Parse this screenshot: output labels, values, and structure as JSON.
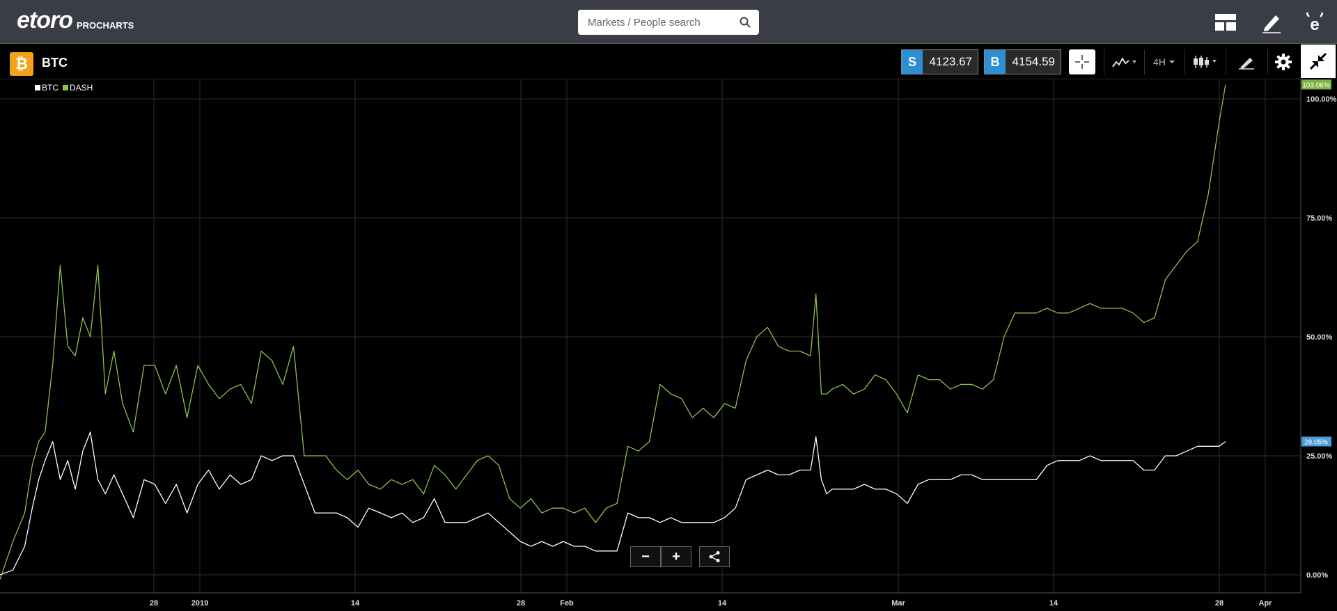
{
  "brand": {
    "word": "etoro",
    "sub": "PROCHARTS"
  },
  "search": {
    "placeholder": "Markets / People search"
  },
  "header_icons": [
    "layout-icon",
    "pencil-icon",
    "profile-icon"
  ],
  "instrument": {
    "symbol": "BTC",
    "badge": "₿"
  },
  "prices": {
    "sell_label": "S",
    "sell": "4123.67",
    "buy_label": "B",
    "buy": "4154.59"
  },
  "toolbar": {
    "timeframe": "4H"
  },
  "colors": {
    "btc": "#ffffff",
    "dash": "#8bc34a",
    "sell_bg": "#2c8fd4",
    "badge": "#f2a31c"
  },
  "legend": [
    {
      "name": "BTC",
      "color": "#ffffff"
    },
    {
      "name": "DASH",
      "color": "#8bc34a"
    }
  ],
  "zoom": {
    "minus": "−",
    "plus": "+"
  },
  "chart_data": {
    "type": "line",
    "x_ticks": [
      "28",
      "2019",
      "14",
      "28",
      "Feb",
      "14",
      "Mar",
      "14",
      "28",
      "Apr"
    ],
    "y_ticks": [
      "100.00%",
      "75.00%",
      "50.00%",
      "25.00%",
      "0.00%"
    ],
    "ylim": [
      -4,
      105
    ],
    "last_value_labels": {
      "BTC": "28.05%",
      "DASH": "103.06%"
    },
    "series": [
      {
        "name": "BTC",
        "color": "#ffffff",
        "points": [
          [
            0,
            0
          ],
          [
            1.2,
            1
          ],
          [
            2.3,
            6
          ],
          [
            3.0,
            14
          ],
          [
            3.6,
            20
          ],
          [
            4.2,
            24
          ],
          [
            4.9,
            28
          ],
          [
            5.6,
            20
          ],
          [
            6.3,
            24
          ],
          [
            7.0,
            18
          ],
          [
            7.7,
            26
          ],
          [
            8.4,
            30
          ],
          [
            9.1,
            20
          ],
          [
            9.8,
            17
          ],
          [
            10.6,
            21
          ],
          [
            11.4,
            17
          ],
          [
            12.4,
            12
          ],
          [
            13.4,
            20
          ],
          [
            14.4,
            19
          ],
          [
            15.4,
            15
          ],
          [
            16.4,
            19
          ],
          [
            17.4,
            13
          ],
          [
            18.4,
            19
          ],
          [
            19.4,
            22
          ],
          [
            20.4,
            18
          ],
          [
            21.4,
            21
          ],
          [
            22.4,
            19
          ],
          [
            23.4,
            20
          ],
          [
            24.3,
            25
          ],
          [
            25.3,
            24
          ],
          [
            26.3,
            25
          ],
          [
            27.3,
            25
          ],
          [
            28.3,
            19
          ],
          [
            29.3,
            13
          ],
          [
            30.3,
            13
          ],
          [
            31.3,
            13
          ],
          [
            32.3,
            12
          ],
          [
            33.3,
            10
          ],
          [
            34.3,
            14
          ],
          [
            35.4,
            13
          ],
          [
            36.4,
            12
          ],
          [
            37.4,
            13
          ],
          [
            38.4,
            11
          ],
          [
            39.4,
            12
          ],
          [
            40.4,
            16
          ],
          [
            41.4,
            11
          ],
          [
            42.4,
            11
          ],
          [
            43.4,
            11
          ],
          [
            44.4,
            12
          ],
          [
            45.4,
            13
          ],
          [
            46.4,
            11
          ],
          [
            47.4,
            9
          ],
          [
            48.4,
            7
          ],
          [
            49.4,
            6
          ],
          [
            50.4,
            7
          ],
          [
            51.4,
            6
          ],
          [
            52.4,
            7
          ],
          [
            53.4,
            6
          ],
          [
            54.4,
            6
          ],
          [
            55.4,
            5
          ],
          [
            56.4,
            5
          ],
          [
            57.4,
            5
          ],
          [
            58.4,
            13
          ],
          [
            59.4,
            12
          ],
          [
            60.4,
            12
          ],
          [
            61.4,
            11
          ],
          [
            62.4,
            12
          ],
          [
            63.4,
            11
          ],
          [
            64.4,
            11
          ],
          [
            65.4,
            11
          ],
          [
            66.4,
            11
          ],
          [
            67.4,
            12
          ],
          [
            68.4,
            14
          ],
          [
            69.4,
            20
          ],
          [
            70.4,
            21
          ],
          [
            71.4,
            22
          ],
          [
            72.4,
            21
          ],
          [
            73.4,
            21
          ],
          [
            74.4,
            22
          ],
          [
            75.4,
            22
          ],
          [
            75.9,
            29
          ],
          [
            76.4,
            20
          ],
          [
            76.9,
            17
          ],
          [
            77.4,
            18
          ],
          [
            78.4,
            18
          ],
          [
            79.4,
            18
          ],
          [
            80.4,
            19
          ],
          [
            81.4,
            18
          ],
          [
            82.4,
            18
          ],
          [
            83.4,
            17
          ],
          [
            84.4,
            15
          ],
          [
            85.4,
            19
          ],
          [
            86.4,
            20
          ],
          [
            87.4,
            20
          ],
          [
            88.4,
            20
          ],
          [
            89.4,
            21
          ],
          [
            90.4,
            21
          ],
          [
            91.4,
            20
          ],
          [
            92.4,
            20
          ],
          [
            93.4,
            20
          ],
          [
            94.4,
            20
          ],
          [
            95.4,
            20
          ],
          [
            96.4,
            20
          ],
          [
            97.4,
            23
          ],
          [
            98.4,
            24
          ],
          [
            99.4,
            24
          ],
          [
            100.4,
            24
          ],
          [
            101.4,
            25
          ],
          [
            102.4,
            24
          ],
          [
            103.4,
            24
          ],
          [
            104.4,
            24
          ],
          [
            105.4,
            24
          ],
          [
            106.4,
            22
          ],
          [
            107.4,
            22
          ],
          [
            108.4,
            25
          ],
          [
            109.4,
            25
          ],
          [
            110.4,
            26
          ],
          [
            111.4,
            27
          ],
          [
            112.4,
            27
          ],
          [
            113.4,
            27
          ],
          [
            114.0,
            28
          ]
        ]
      },
      {
        "name": "DASH",
        "color": "#8bc34a",
        "points": [
          [
            0,
            -1
          ],
          [
            1.2,
            7
          ],
          [
            2.3,
            13
          ],
          [
            3.0,
            23
          ],
          [
            3.6,
            28
          ],
          [
            4.2,
            30
          ],
          [
            4.9,
            44
          ],
          [
            5.6,
            65
          ],
          [
            6.3,
            48
          ],
          [
            7.0,
            46
          ],
          [
            7.7,
            54
          ],
          [
            8.4,
            50
          ],
          [
            9.1,
            65
          ],
          [
            9.8,
            38
          ],
          [
            10.6,
            47
          ],
          [
            11.4,
            36
          ],
          [
            12.4,
            30
          ],
          [
            13.4,
            44
          ],
          [
            14.4,
            44
          ],
          [
            15.4,
            38
          ],
          [
            16.4,
            44
          ],
          [
            17.4,
            33
          ],
          [
            18.4,
            44
          ],
          [
            19.4,
            40
          ],
          [
            20.4,
            37
          ],
          [
            21.4,
            39
          ],
          [
            22.4,
            40
          ],
          [
            23.4,
            36
          ],
          [
            24.3,
            47
          ],
          [
            25.3,
            45
          ],
          [
            26.3,
            40
          ],
          [
            27.3,
            48
          ],
          [
            28.3,
            25
          ],
          [
            29.3,
            25
          ],
          [
            30.3,
            25
          ],
          [
            31.3,
            22
          ],
          [
            32.3,
            20
          ],
          [
            33.3,
            22
          ],
          [
            34.3,
            19
          ],
          [
            35.4,
            18
          ],
          [
            36.4,
            20
          ],
          [
            37.4,
            19
          ],
          [
            38.4,
            20
          ],
          [
            39.4,
            17
          ],
          [
            40.4,
            23
          ],
          [
            41.4,
            21
          ],
          [
            42.4,
            18
          ],
          [
            43.4,
            21
          ],
          [
            44.4,
            24
          ],
          [
            45.4,
            25
          ],
          [
            46.4,
            23
          ],
          [
            47.4,
            16
          ],
          [
            48.4,
            14
          ],
          [
            49.4,
            16
          ],
          [
            50.4,
            13
          ],
          [
            51.4,
            14
          ],
          [
            52.4,
            14
          ],
          [
            53.4,
            13
          ],
          [
            54.4,
            14
          ],
          [
            55.4,
            11
          ],
          [
            56.4,
            14
          ],
          [
            57.4,
            15
          ],
          [
            58.4,
            27
          ],
          [
            59.4,
            26
          ],
          [
            60.4,
            28
          ],
          [
            61.4,
            40
          ],
          [
            62.4,
            38
          ],
          [
            63.4,
            37
          ],
          [
            64.4,
            33
          ],
          [
            65.4,
            35
          ],
          [
            66.4,
            33
          ],
          [
            67.4,
            36
          ],
          [
            68.4,
            35
          ],
          [
            69.4,
            45
          ],
          [
            70.4,
            50
          ],
          [
            71.4,
            52
          ],
          [
            72.4,
            48
          ],
          [
            73.4,
            47
          ],
          [
            74.4,
            47
          ],
          [
            75.4,
            46
          ],
          [
            75.9,
            59
          ],
          [
            76.4,
            38
          ],
          [
            76.9,
            38
          ],
          [
            77.4,
            39
          ],
          [
            78.4,
            40
          ],
          [
            79.4,
            38
          ],
          [
            80.4,
            39
          ],
          [
            81.4,
            42
          ],
          [
            82.4,
            41
          ],
          [
            83.4,
            38
          ],
          [
            84.4,
            34
          ],
          [
            85.4,
            42
          ],
          [
            86.4,
            41
          ],
          [
            87.4,
            41
          ],
          [
            88.4,
            39
          ],
          [
            89.4,
            40
          ],
          [
            90.4,
            40
          ],
          [
            91.4,
            39
          ],
          [
            92.4,
            41
          ],
          [
            93.4,
            50
          ],
          [
            94.4,
            55
          ],
          [
            95.4,
            55
          ],
          [
            96.4,
            55
          ],
          [
            97.4,
            56
          ],
          [
            98.4,
            55
          ],
          [
            99.4,
            55
          ],
          [
            100.4,
            56
          ],
          [
            101.4,
            57
          ],
          [
            102.4,
            56
          ],
          [
            103.4,
            56
          ],
          [
            104.4,
            56
          ],
          [
            105.4,
            55
          ],
          [
            106.4,
            53
          ],
          [
            107.4,
            54
          ],
          [
            108.4,
            62
          ],
          [
            109.4,
            65
          ],
          [
            110.4,
            68
          ],
          [
            111.4,
            70
          ],
          [
            112.4,
            80
          ],
          [
            113.4,
            95
          ],
          [
            114.0,
            103
          ]
        ]
      }
    ]
  }
}
